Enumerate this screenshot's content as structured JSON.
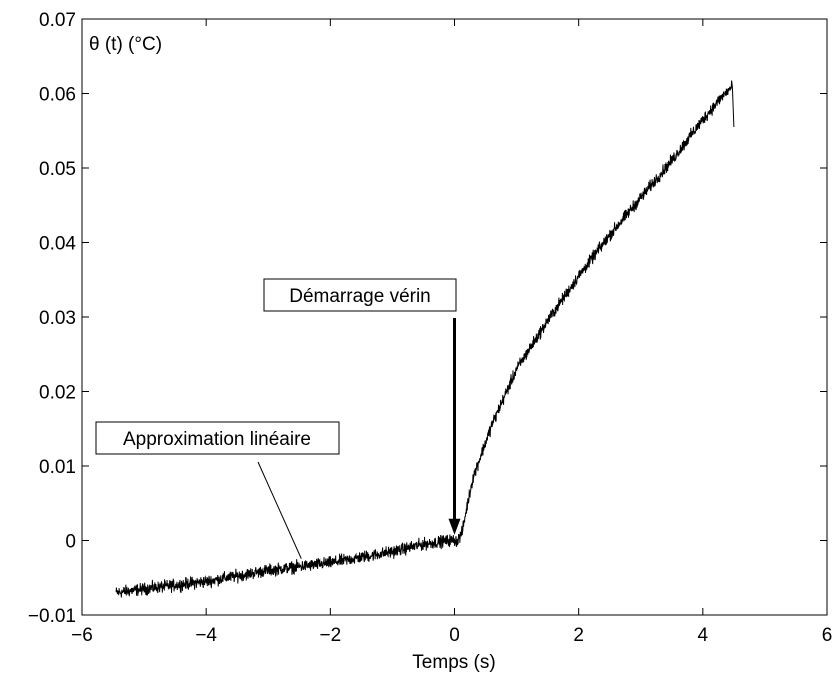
{
  "chart_data": {
    "type": "line",
    "title": "",
    "xlabel": "Temps (s)",
    "ylabel": "θ (t) (°C)",
    "xlim": [
      -6,
      6
    ],
    "ylim": [
      -0.01,
      0.07
    ],
    "x_ticks": [
      -6,
      -4,
      -2,
      0,
      2,
      4,
      6
    ],
    "x_tick_labels": [
      "−6",
      "−4",
      "−2",
      "0",
      "2",
      "4",
      "6"
    ],
    "y_ticks": [
      -0.01,
      0,
      0.01,
      0.02,
      0.03,
      0.04,
      0.05,
      0.06,
      0.07
    ],
    "y_tick_labels": [
      "−0.01",
      "0",
      "0.01",
      "0.02",
      "0.03",
      "0.04",
      "0.05",
      "0.06",
      "0.07"
    ],
    "grid": false,
    "series": [
      {
        "name": "",
        "color": "#000000",
        "noise": 0.0008,
        "x": [
          -5.45,
          -5.0,
          -4.0,
          -3.0,
          -2.0,
          -1.0,
          -0.5,
          -0.1,
          0.05,
          0.12,
          0.2,
          0.3,
          0.6,
          1.0,
          1.5,
          2.0,
          2.5,
          3.0,
          3.5,
          4.0,
          4.3,
          4.48,
          4.5
        ],
        "y": [
          -0.007,
          -0.0065,
          -0.0055,
          -0.004,
          -0.003,
          -0.0015,
          -0.0005,
          0.0,
          0.0,
          0.001,
          0.0045,
          0.0085,
          0.0155,
          0.023,
          0.0295,
          0.0355,
          0.041,
          0.046,
          0.051,
          0.0565,
          0.0595,
          0.061,
          0.0555
        ]
      }
    ],
    "annotations": [
      {
        "text": "Démarrage vérin",
        "type": "arrow",
        "target_x": 0.0,
        "target_y": 0.0005
      },
      {
        "text": "Approximation linéaire",
        "type": "line",
        "target_x": -2.5,
        "target_y": -0.0027
      }
    ]
  }
}
